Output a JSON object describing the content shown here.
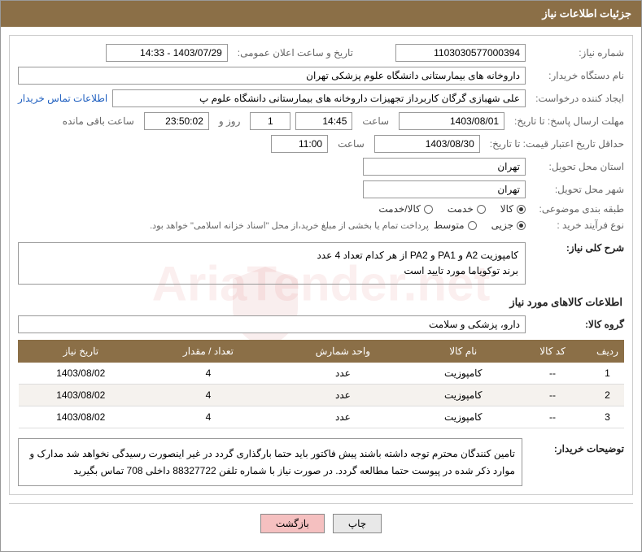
{
  "header_title": "جزئیات اطلاعات نیاز",
  "fields": {
    "need_no_label": "شماره نیاز:",
    "need_no": "1103030577000394",
    "announce_label": "تاریخ و ساعت اعلان عمومی:",
    "announce_value": "1403/07/29 - 14:33",
    "buyer_org_label": "نام دستگاه خریدار:",
    "buyer_org": "داروخانه های بیمارستانی دانشگاه علوم پزشکی تهران",
    "requester_label": "ایجاد کننده درخواست:",
    "requester": "علی شهبازی گرگان کاربرداز تجهیزات داروخانه های بیمارستانی دانشگاه علوم پ",
    "contact_link": "اطلاعات تماس خریدار",
    "reply_deadline_label": "مهلت ارسال پاسخ: تا تاریخ:",
    "reply_date": "1403/08/01",
    "time_word": "ساعت",
    "reply_time": "14:45",
    "days_count": "1",
    "days_word": "روز و",
    "countdown": "23:50:02",
    "remaining_word": "ساعت باقی مانده",
    "price_valid_label": "حداقل تاریخ اعتبار قیمت: تا تاریخ:",
    "price_date": "1403/08/30",
    "price_time": "11:00",
    "province_label": "استان محل تحویل:",
    "province": "تهران",
    "city_label": "شهر محل تحویل:",
    "city": "تهران",
    "category_label": "طبقه بندی موضوعی:",
    "process_label": "نوع فرآیند خرید :",
    "payment_note": "پرداخت تمام یا بخشی از مبلغ خرید،از محل \"اسناد خزانه اسلامی\" خواهد بود.",
    "desc_label": "شرح کلی نیاز:",
    "desc_line1": "کامپوزیت A2 و PA1 و PA2 از هر کدام تعداد 4 عدد",
    "desc_line2": "برند توکویاما مورد تایید است",
    "items_title": "اطلاعات کالاهای مورد نیاز",
    "group_label": "گروه کالا:",
    "group_value": "دارو، پزشکی و سلامت",
    "buyer_notes_label": "توضیحات خریدار:",
    "buyer_notes": "تامین کنندگان محترم توجه داشته باشند پیش فاکتور باید حتما بارگذاری گردد در غیر اینصورت رسیدگی نخواهد شد مدارک و موارد ذکر شده در پیوست حتما مطالعه گردد. در صورت نیاز با شماره تلفن 88327722 داخلی 708 تماس بگیرید"
  },
  "radios_category": [
    {
      "label": "کالا",
      "checked": true
    },
    {
      "label": "خدمت",
      "checked": false
    },
    {
      "label": "کالا/خدمت",
      "checked": false
    }
  ],
  "radios_process": [
    {
      "label": "جزیی",
      "checked": true
    },
    {
      "label": "متوسط",
      "checked": false
    }
  ],
  "table": {
    "headers": [
      "ردیف",
      "کد کالا",
      "نام کالا",
      "واحد شمارش",
      "تعداد / مقدار",
      "تاریخ نیاز"
    ],
    "rows": [
      [
        "1",
        "--",
        "کامپوزیت",
        "عدد",
        "4",
        "1403/08/02"
      ],
      [
        "2",
        "--",
        "کامپوزیت",
        "عدد",
        "4",
        "1403/08/02"
      ],
      [
        "3",
        "--",
        "کامپوزیت",
        "عدد",
        "4",
        "1403/08/02"
      ]
    ]
  },
  "buttons": {
    "print": "چاپ",
    "back": "بازگشت"
  },
  "colors": {
    "header_bg": "#8b6f47",
    "border": "#999999"
  }
}
